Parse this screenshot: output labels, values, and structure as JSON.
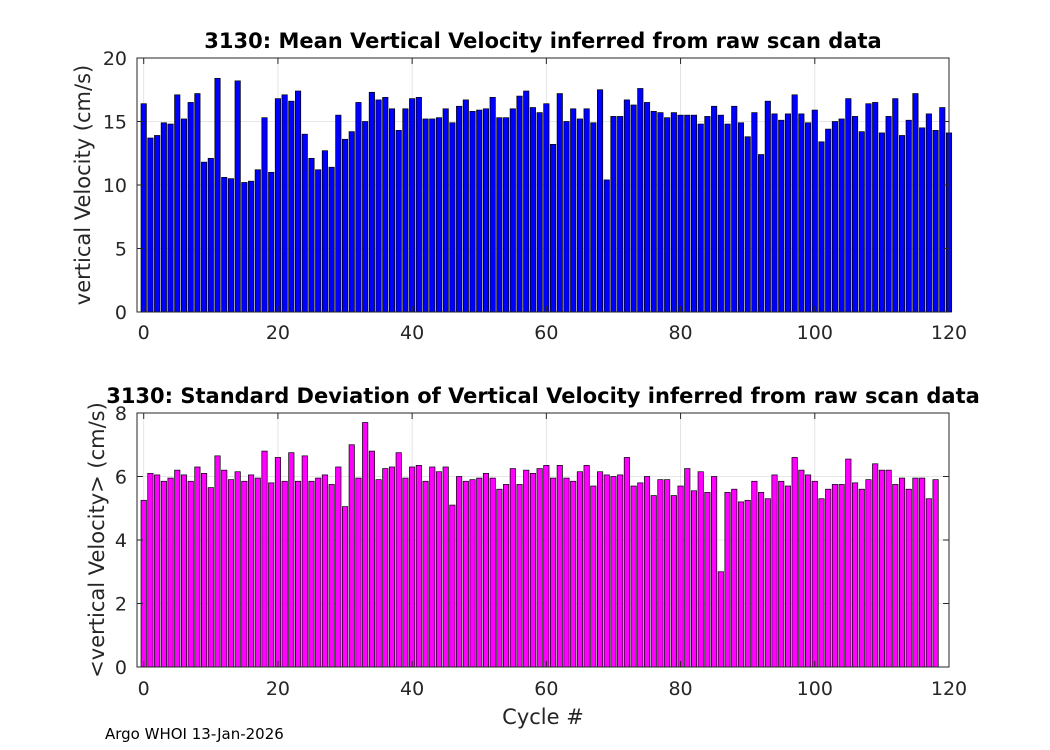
{
  "footer": "Argo WHOI 13-Jan-2026",
  "chart_data": [
    {
      "type": "bar",
      "title": "3130: Mean Vertical Velocity inferred from raw scan data",
      "xlabel": "",
      "ylabel": "vertical Velocity (cm/s)",
      "xlim": [
        -1,
        120
      ],
      "ylim": [
        0,
        20
      ],
      "xticks": [
        0,
        20,
        40,
        60,
        80,
        100,
        120
      ],
      "yticks": [
        0,
        5,
        10,
        15,
        20
      ],
      "grid": true,
      "color": "#0000ff",
      "x_start": 0,
      "values": [
        16.4,
        13.7,
        13.9,
        14.9,
        14.8,
        17.1,
        15.2,
        16.5,
        17.2,
        11.8,
        12.1,
        18.4,
        10.6,
        10.5,
        18.2,
        10.2,
        10.3,
        11.2,
        15.3,
        11.0,
        16.8,
        17.1,
        16.6,
        17.4,
        14.0,
        12.1,
        11.2,
        12.7,
        11.4,
        15.5,
        13.6,
        14.2,
        16.5,
        15.0,
        17.3,
        16.7,
        16.9,
        16.0,
        14.3,
        16.0,
        16.8,
        16.9,
        15.2,
        15.2,
        15.3,
        16.0,
        14.9,
        16.2,
        16.7,
        15.8,
        15.9,
        16.0,
        16.9,
        15.3,
        15.3,
        16.0,
        17.0,
        17.4,
        16.1,
        15.7,
        16.4,
        13.2,
        17.2,
        15.0,
        16.0,
        15.2,
        16.0,
        14.9,
        17.5,
        10.4,
        15.4,
        15.4,
        16.7,
        16.3,
        17.6,
        16.5,
        15.8,
        15.7,
        15.3,
        15.7,
        15.5,
        15.5,
        15.5,
        14.8,
        15.4,
        16.2,
        15.5,
        14.8,
        16.2,
        14.9,
        13.8,
        15.7,
        12.4,
        16.6,
        15.6,
        15.1,
        15.6,
        17.1,
        15.6,
        14.9,
        15.9,
        13.4,
        14.4,
        15.0,
        15.2,
        16.8,
        15.4,
        14.2,
        16.4,
        16.5,
        14.1,
        15.4,
        16.8,
        13.9,
        15.1,
        17.2,
        14.5,
        15.6,
        14.3,
        16.1,
        14.1
      ]
    },
    {
      "type": "bar",
      "title": "3130: Standard Deviation of Vertical Velocity inferred from raw scan data",
      "xlabel": "Cycle #",
      "ylabel": "<vertical Velocity> (cm/s)",
      "xlim": [
        -1,
        120
      ],
      "ylim": [
        0,
        8
      ],
      "xticks": [
        0,
        20,
        40,
        60,
        80,
        100,
        120
      ],
      "yticks": [
        0,
        2,
        4,
        6,
        8
      ],
      "grid": true,
      "color": "#ff00ff",
      "x_start": 0,
      "values": [
        5.25,
        6.1,
        6.05,
        5.85,
        5.95,
        6.2,
        6.05,
        5.85,
        6.3,
        6.1,
        5.65,
        6.65,
        6.2,
        5.9,
        6.15,
        5.85,
        6.05,
        5.95,
        6.8,
        5.8,
        6.6,
        5.85,
        6.75,
        5.85,
        6.65,
        5.85,
        5.95,
        6.05,
        5.75,
        6.3,
        5.05,
        7.0,
        5.95,
        7.7,
        6.8,
        5.9,
        6.25,
        6.3,
        6.75,
        5.95,
        6.3,
        6.35,
        5.85,
        6.3,
        6.15,
        6.3,
        5.1,
        6.0,
        5.85,
        5.9,
        5.95,
        6.1,
        5.95,
        5.6,
        5.75,
        6.25,
        5.75,
        6.2,
        6.1,
        6.25,
        6.35,
        5.95,
        6.35,
        5.95,
        5.85,
        6.15,
        6.35,
        5.7,
        6.15,
        6.05,
        6.0,
        6.05,
        6.6,
        5.7,
        5.8,
        6.0,
        5.4,
        5.9,
        5.9,
        5.4,
        5.7,
        6.25,
        5.55,
        6.15,
        5.5,
        6.0,
        3.0,
        5.5,
        5.6,
        5.2,
        5.25,
        5.85,
        5.5,
        5.3,
        6.05,
        5.85,
        5.7,
        6.6,
        6.2,
        6.05,
        5.85,
        5.3,
        5.6,
        5.75,
        5.75,
        6.55,
        5.8,
        5.6,
        5.9,
        6.4,
        6.2,
        6.2,
        5.75,
        5.95,
        5.6,
        5.95,
        5.95,
        5.3,
        5.9
      ]
    }
  ]
}
